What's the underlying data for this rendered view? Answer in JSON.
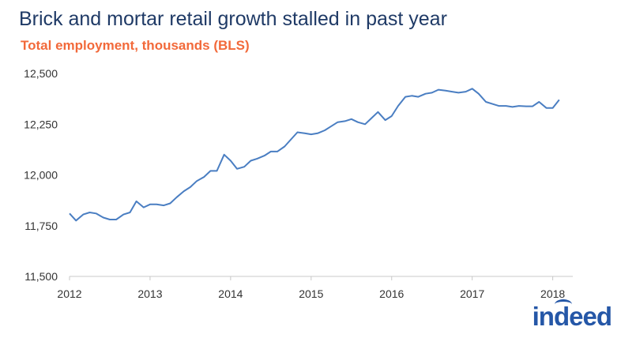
{
  "chart_data": {
    "type": "line",
    "title": "Brick and mortar retail growth stalled in past year",
    "subtitle": "Total employment, thousands (BLS)",
    "xlabel": "",
    "ylabel": "",
    "xlim": [
      2012,
      2018.2
    ],
    "ylim": [
      11500,
      12500
    ],
    "yticks": [
      11500,
      11750,
      12000,
      12250,
      12500
    ],
    "ytick_labels": [
      "11,500",
      "11,750",
      "12,000",
      "12,250",
      "12,500"
    ],
    "xticks": [
      2012,
      2013,
      2014,
      2015,
      2016,
      2017,
      2018
    ],
    "xtick_labels": [
      "2012",
      "2013",
      "2014",
      "2015",
      "2016",
      "2017",
      "2018"
    ],
    "grid": false,
    "series": [
      {
        "color": "#4a7ec2",
        "x": [
          2012.0,
          2012.08,
          2012.17,
          2012.25,
          2012.33,
          2012.42,
          2012.5,
          2012.58,
          2012.67,
          2012.75,
          2012.83,
          2012.92,
          2013.0,
          2013.08,
          2013.17,
          2013.25,
          2013.33,
          2013.42,
          2013.5,
          2013.58,
          2013.67,
          2013.75,
          2013.83,
          2013.92,
          2014.0,
          2014.08,
          2014.17,
          2014.25,
          2014.33,
          2014.42,
          2014.5,
          2014.58,
          2014.67,
          2014.75,
          2014.83,
          2014.92,
          2015.0,
          2015.08,
          2015.17,
          2015.25,
          2015.33,
          2015.42,
          2015.5,
          2015.58,
          2015.67,
          2015.75,
          2015.83,
          2015.92,
          2016.0,
          2016.08,
          2016.17,
          2016.25,
          2016.33,
          2016.42,
          2016.5,
          2016.58,
          2016.67,
          2016.75,
          2016.83,
          2016.92,
          2017.0,
          2017.08,
          2017.17,
          2017.25,
          2017.33,
          2017.42,
          2017.5,
          2017.58,
          2017.67,
          2017.75,
          2017.83,
          2017.92,
          2018.0,
          2018.08
        ],
        "values": [
          11810,
          11775,
          11805,
          11815,
          11810,
          11790,
          11780,
          11780,
          11805,
          11815,
          11870,
          11840,
          11855,
          11855,
          11850,
          11860,
          11890,
          11920,
          11940,
          11970,
          11990,
          12020,
          12020,
          12100,
          12070,
          12030,
          12040,
          12070,
          12080,
          12095,
          12115,
          12115,
          12140,
          12175,
          12210,
          12205,
          12200,
          12205,
          12220,
          12240,
          12260,
          12265,
          12275,
          12260,
          12250,
          12280,
          12310,
          12270,
          12290,
          12340,
          12385,
          12390,
          12385,
          12400,
          12405,
          12420,
          12415,
          12410,
          12405,
          12410,
          12425,
          12400,
          12360,
          12350,
          12340,
          12340,
          12335,
          12340,
          12338,
          12338,
          12360,
          12330,
          12330,
          12370
        ]
      }
    ]
  },
  "brand": {
    "logo_text": "indeed",
    "logo_color": "#2557a7",
    "title_color": "#1f3a66",
    "subtitle_color": "#f2693a"
  }
}
